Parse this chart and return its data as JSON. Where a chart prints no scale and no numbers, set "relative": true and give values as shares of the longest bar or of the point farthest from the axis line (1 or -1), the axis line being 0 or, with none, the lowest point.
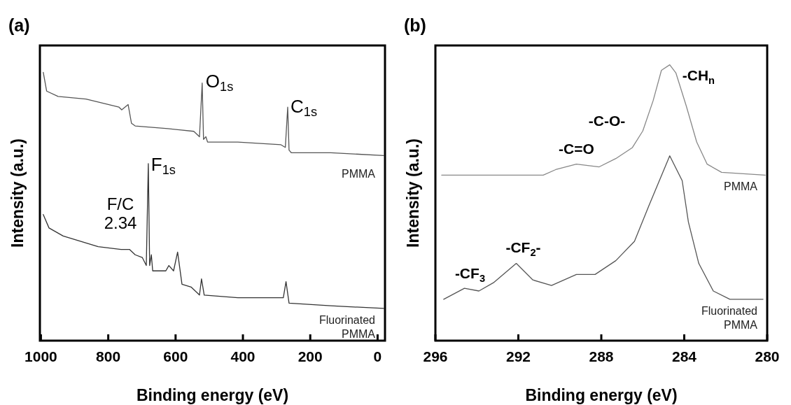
{
  "chart_data": [
    {
      "type": "line",
      "title": "(a)",
      "xlabel": "Binding energy (eV)",
      "ylabel": "Intensity (a.u.)",
      "relative": true,
      "xlim": [
        1003,
        -22
      ],
      "xticks": [
        1000,
        800,
        600,
        400,
        200,
        0
      ],
      "series": [
        {
          "name": "PMMA",
          "color": "#555555",
          "x": [
            993,
            983,
            949,
            866,
            768,
            760,
            741,
            731,
            720,
            623,
            546,
            529,
            521,
            517,
            510,
            505,
            415,
            287,
            274,
            267,
            263,
            256,
            139,
            -18
          ],
          "values": [
            1.0,
            0.93,
            0.91,
            0.9,
            0.87,
            0.86,
            0.88,
            0.81,
            0.8,
            0.79,
            0.78,
            0.76,
            0.96,
            0.75,
            0.76,
            0.74,
            0.74,
            0.73,
            0.72,
            0.87,
            0.71,
            0.7,
            0.7,
            0.69
          ]
        },
        {
          "name": "Fluorinated PMMA",
          "color": "#333333",
          "x": [
            993,
            976,
            934,
            830,
            762,
            737,
            720,
            699,
            687,
            681,
            677,
            672,
            668,
            629,
            620,
            606,
            594,
            581,
            554,
            529,
            523,
            515,
            415,
            280,
            272,
            263,
            139,
            -18
          ],
          "values": [
            0.47,
            0.42,
            0.39,
            0.35,
            0.34,
            0.34,
            0.32,
            0.31,
            0.28,
            0.66,
            0.28,
            0.32,
            0.26,
            0.26,
            0.28,
            0.26,
            0.33,
            0.21,
            0.2,
            0.17,
            0.23,
            0.17,
            0.16,
            0.16,
            0.22,
            0.14,
            0.13,
            0.12
          ]
        }
      ],
      "annotations": [
        {
          "text": "O$_{1s}$",
          "x": 521,
          "y": 0.96
        },
        {
          "text": "C$_{1s}$",
          "x": 267,
          "y": 0.87
        },
        {
          "text": "F$_{1s}$",
          "x": 681,
          "y": 0.66
        },
        "F/C 2.34"
      ]
    },
    {
      "type": "line",
      "title": "(b)",
      "xlabel": "Binding energy (eV)",
      "ylabel": "Intensity (a.u.)",
      "relative": true,
      "xlim": [
        296,
        280
      ],
      "xticks": [
        296,
        292,
        288,
        284,
        280
      ],
      "series": [
        {
          "name": "PMMA",
          "color": "#888888",
          "x": [
            295.7,
            292.8,
            290.8,
            290.2,
            289.2,
            288.1,
            287.3,
            286.5,
            286.0,
            285.5,
            285.1,
            284.7,
            284.4,
            283.9,
            283.4,
            282.9,
            282.2,
            280.1
          ],
          "values": [
            0.6,
            0.6,
            0.6,
            0.62,
            0.64,
            0.63,
            0.66,
            0.7,
            0.76,
            0.87,
            0.98,
            1.0,
            0.97,
            0.85,
            0.72,
            0.64,
            0.61,
            0.6
          ]
        },
        {
          "name": "Fluorinated PMMA",
          "color": "#555555",
          "x": [
            295.6,
            294.6,
            293.9,
            293.2,
            292.1,
            291.3,
            290.4,
            289.2,
            288.3,
            287.3,
            286.4,
            285.7,
            285.2,
            284.7,
            284.1,
            283.8,
            283.3,
            282.6,
            281.8,
            280.2
          ],
          "values": [
            0.15,
            0.19,
            0.18,
            0.21,
            0.28,
            0.22,
            0.2,
            0.24,
            0.24,
            0.29,
            0.36,
            0.49,
            0.58,
            0.67,
            0.58,
            0.43,
            0.28,
            0.18,
            0.15,
            0.15
          ]
        }
      ],
      "annotations": [
        {
          "text": "-CH$_{n}$",
          "x": 284.7,
          "y": 1.0
        },
        "-C-O-",
        {
          "text": "-C=O",
          "x": 289.2,
          "y": 0.64
        },
        {
          "text": "-CF$_{3}$",
          "x": 294.6,
          "y": 0.19
        },
        {
          "text": "-CF$_{2}$-",
          "x": 292.1,
          "y": 0.28
        }
      ]
    }
  ]
}
